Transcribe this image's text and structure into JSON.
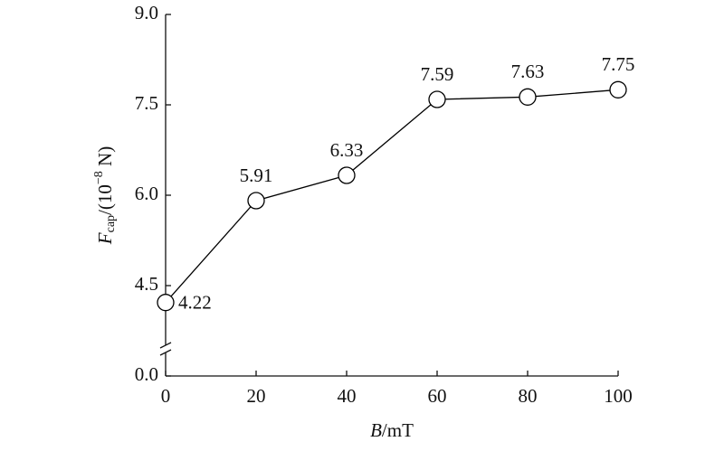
{
  "chart_data": {
    "type": "line",
    "x_label": {
      "symbol": "B",
      "unit": "/mT"
    },
    "y_label": {
      "symbol": "F",
      "subscript": "cap",
      "unit_start": "/(10",
      "exponent": "−8",
      "unit_end": " N)"
    },
    "x": [
      0,
      20,
      40,
      60,
      80,
      100
    ],
    "series": [
      {
        "values": [
          4.22,
          5.91,
          6.33,
          7.59,
          7.63,
          7.75
        ],
        "color": "#000000"
      }
    ],
    "xlim": [
      0,
      100
    ],
    "xticks": [
      0,
      20,
      40,
      60,
      80,
      100
    ],
    "ylim": [
      0,
      9
    ],
    "yticks": [
      {
        "value": 0,
        "label": "0.0"
      },
      {
        "value": 4.5,
        "label": "4.5"
      },
      {
        "value": 6,
        "label": "6.0"
      },
      {
        "value": 7.5,
        "label": "7.5"
      },
      {
        "value": 9,
        "label": "9.0"
      }
    ],
    "axis_break": true,
    "grid": false
  }
}
